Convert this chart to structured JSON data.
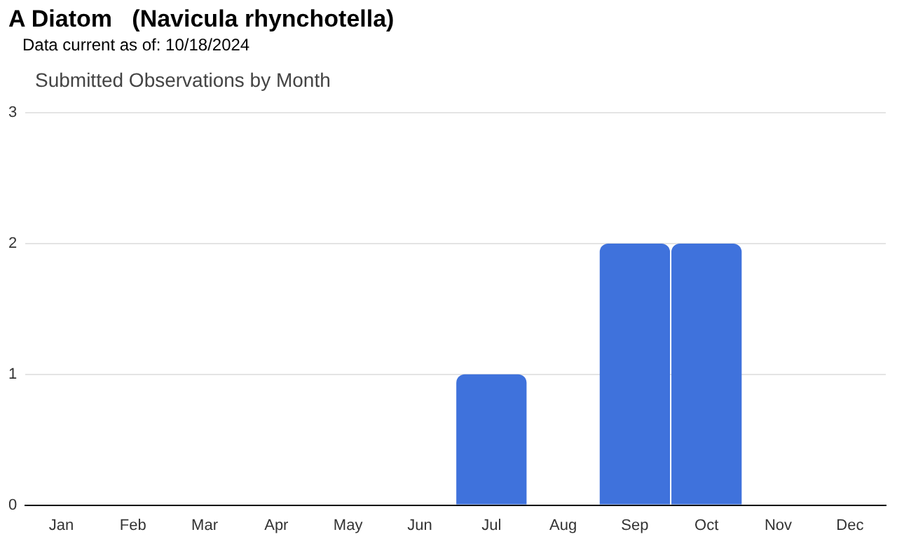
{
  "chart_data": {
    "type": "bar",
    "title": "A Diatom   (Navicula rhynchotella)",
    "subtitle": "Data current as of: 10/18/2024",
    "annotations": [
      "Submitted Observations by Month"
    ],
    "categories": [
      "Jan",
      "Feb",
      "Mar",
      "Apr",
      "May",
      "Jun",
      "Jul",
      "Aug",
      "Sep",
      "Oct",
      "Nov",
      "Dec"
    ],
    "values": [
      0,
      0,
      0,
      0,
      0,
      0,
      1,
      0,
      2,
      2,
      0,
      0
    ],
    "color": "#3f72dc",
    "ylim": [
      0,
      3
    ],
    "yticks": [
      0,
      1,
      2,
      3
    ],
    "grid": "y",
    "legend": false
  }
}
